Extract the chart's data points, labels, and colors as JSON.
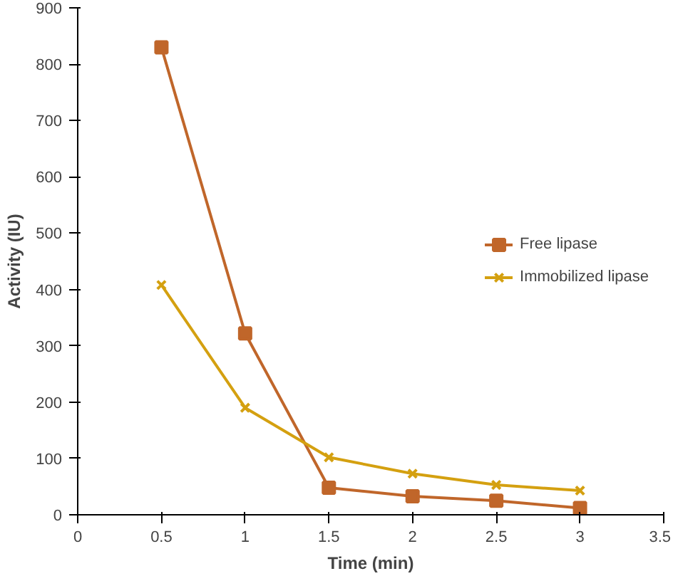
{
  "chart_data": {
    "type": "line",
    "xlabel": "Time (min)",
    "ylabel": "Activity (IU)",
    "x": [
      0.5,
      1,
      1.5,
      2,
      2.5,
      3
    ],
    "series": [
      {
        "name": "Free lipase",
        "color": "#c0662a",
        "marker": "square",
        "values": [
          830,
          322,
          48,
          33,
          25,
          12
        ]
      },
      {
        "name": "Immobilized lipase",
        "color": "#d4a010",
        "marker": "cross",
        "values": [
          408,
          190,
          102,
          73,
          53,
          43
        ]
      }
    ],
    "xlim": [
      0,
      3.5
    ],
    "xticks": [
      0,
      0.5,
      1,
      1.5,
      2,
      2.5,
      3,
      3.5
    ],
    "ylim": [
      0,
      900
    ],
    "yticks": [
      0,
      100,
      200,
      300,
      400,
      500,
      600,
      700,
      800,
      900
    ],
    "grid": false,
    "legend": "right"
  }
}
